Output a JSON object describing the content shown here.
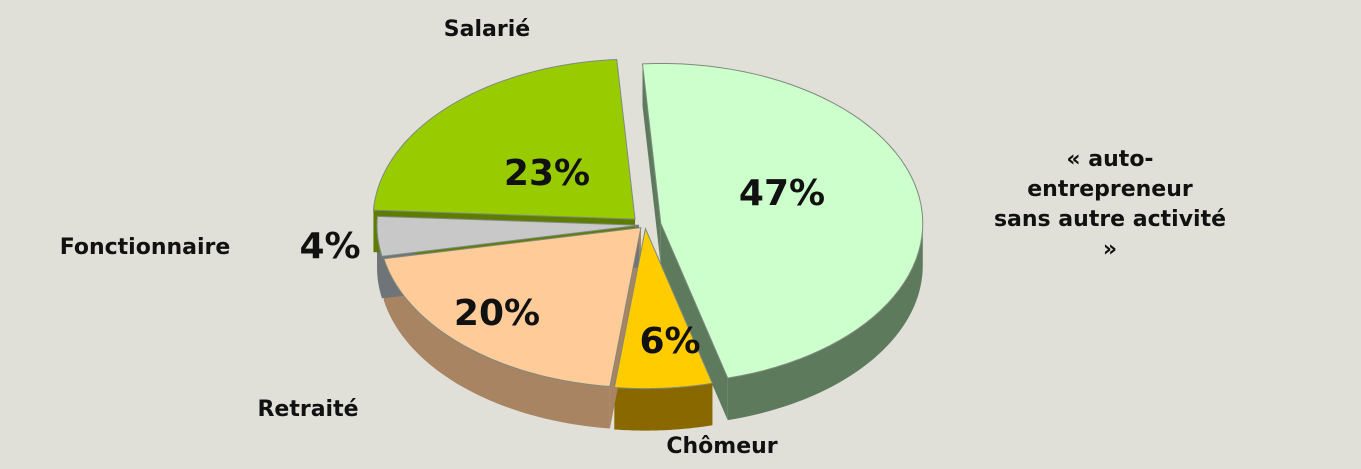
{
  "chart_data": {
    "type": "pie",
    "categories": [
      "« auto-entrepreneur\nsans autre activité »",
      "Chômeur",
      "Retraité",
      "Fonctionnaire",
      "Salarié"
    ],
    "values": [
      47,
      6,
      20,
      4,
      23
    ],
    "value_labels": [
      "47%",
      "6%",
      "20%",
      "4%",
      "23%"
    ],
    "colors": [
      "#ccffcc",
      "#ffcc00",
      "#ffcc99",
      "#c8c8c8",
      "#99cc00"
    ],
    "side_colors": [
      "#5d7a5d",
      "#8a6800",
      "#a88462",
      "#6e7478",
      "#5e7d00"
    ]
  }
}
